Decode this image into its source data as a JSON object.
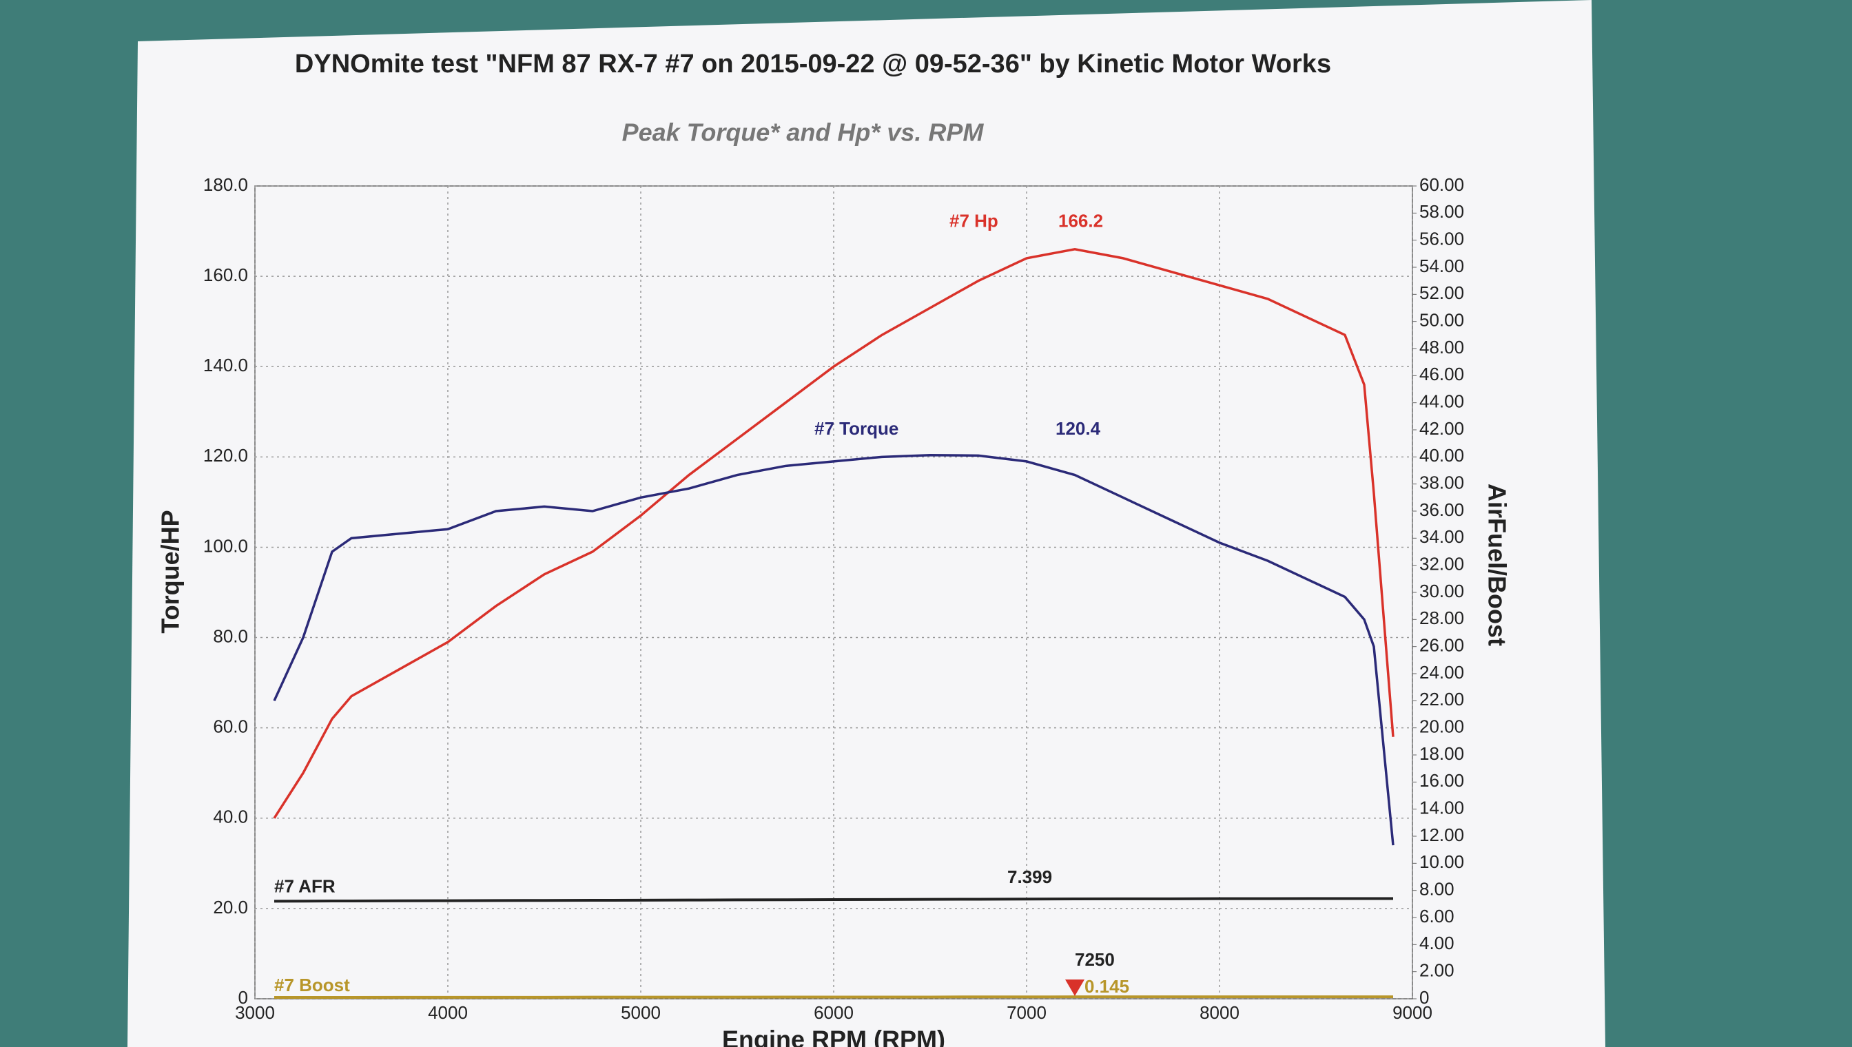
{
  "chart_data": {
    "type": "line",
    "title": "DYNOmite test \"NFM 87 RX-7 #7 on 2015-09-22 @ 09-52-36\" by Kinetic Motor Works",
    "subtitle": "Peak Torque* and Hp* vs. RPM",
    "x_label": "Engine RPM (RPM)",
    "y_label": "Torque/HP",
    "y2_label": "AirFuel/Boost",
    "xlim": [
      3000,
      9000
    ],
    "xticks": [
      3000,
      4000,
      5000,
      6000,
      7000,
      8000,
      9000
    ],
    "ylim": [
      0,
      180
    ],
    "yticks": [
      0,
      {
        "value": 20,
        "label": "20.0"
      },
      {
        "value": 40,
        "label": "40.0"
      },
      {
        "value": 60,
        "label": "60.0"
      },
      {
        "value": 80,
        "label": "80.0"
      },
      {
        "value": 100,
        "label": "100.0"
      },
      {
        "value": 120,
        "label": "120.0"
      },
      {
        "value": 140,
        "label": "140.0"
      },
      {
        "value": 160,
        "label": "160.0"
      },
      {
        "value": 180,
        "label": "180.0"
      }
    ],
    "y2lim": [
      0,
      60
    ],
    "y2ticks": [
      0,
      {
        "value": 2,
        "label": "2.00"
      },
      {
        "value": 4,
        "label": "4.00"
      },
      {
        "value": 6,
        "label": "6.00"
      },
      {
        "value": 8,
        "label": "8.00"
      },
      {
        "value": 10,
        "label": "10.00"
      },
      {
        "value": 12,
        "label": "12.00"
      },
      {
        "value": 14,
        "label": "14.00"
      },
      {
        "value": 16,
        "label": "16.00"
      },
      {
        "value": 18,
        "label": "18.00"
      },
      {
        "value": 20,
        "label": "20.00"
      },
      {
        "value": 22,
        "label": "22.00"
      },
      {
        "value": 24,
        "label": "24.00"
      },
      {
        "value": 26,
        "label": "26.00"
      },
      {
        "value": 28,
        "label": "28.00"
      },
      {
        "value": 30,
        "label": "30.00"
      },
      {
        "value": 32,
        "label": "32.00"
      },
      {
        "value": 34,
        "label": "34.00"
      },
      {
        "value": 36,
        "label": "36.00"
      },
      {
        "value": 38,
        "label": "38.00"
      },
      {
        "value": 40,
        "label": "40.00"
      },
      {
        "value": 42,
        "label": "42.00"
      },
      {
        "value": 44,
        "label": "44.00"
      },
      {
        "value": 46,
        "label": "46.00"
      },
      {
        "value": 48,
        "label": "48.00"
      },
      {
        "value": 50,
        "label": "50.00"
      },
      {
        "value": 52,
        "label": "52.00"
      },
      {
        "value": 54,
        "label": "54.00"
      },
      {
        "value": 56,
        "label": "56.00"
      },
      {
        "value": 58,
        "label": "58.00"
      },
      {
        "value": 60,
        "label": "60.00"
      }
    ],
    "grid": true,
    "x": [
      3100,
      3250,
      3400,
      3500,
      3750,
      4000,
      4250,
      4500,
      4750,
      5000,
      5250,
      5500,
      5750,
      6000,
      6250,
      6500,
      6750,
      7000,
      7250,
      7500,
      7750,
      8000,
      8250,
      8500,
      8650,
      8750,
      8800,
      8900
    ],
    "series": [
      {
        "name": "#7 Hp",
        "color": "#d9322a",
        "peak": 166.2,
        "values": [
          40,
          50,
          62,
          67,
          73,
          79,
          87,
          94,
          99,
          107,
          116,
          124,
          132,
          140,
          147,
          153,
          159,
          164,
          166,
          164,
          161,
          158,
          155,
          150,
          147,
          136,
          112,
          58
        ]
      },
      {
        "name": "#7 Torque",
        "color": "#2b2a78",
        "peak": 120.4,
        "values": [
          66,
          80,
          99,
          102,
          103,
          104,
          108,
          109,
          108,
          111,
          113,
          116,
          118,
          119,
          120,
          120.4,
          120.3,
          119,
          116,
          111,
          106,
          101,
          97,
          92,
          89,
          84,
          78,
          34
        ]
      },
      {
        "name": "#7 AFR",
        "color": "#222222",
        "axis": "y2",
        "peak": 7.399,
        "values": [
          7.2,
          7.21,
          7.22,
          7.22,
          7.23,
          7.24,
          7.25,
          7.26,
          7.27,
          7.28,
          7.29,
          7.3,
          7.31,
          7.32,
          7.33,
          7.34,
          7.35,
          7.36,
          7.37,
          7.38,
          7.38,
          7.39,
          7.39,
          7.399,
          7.399,
          7.399,
          7.399,
          7.399
        ]
      },
      {
        "name": "#7 Boost",
        "color": "#b8962a",
        "axis": "y2",
        "peak": 0.145,
        "values": [
          0.1,
          0.1,
          0.1,
          0.1,
          0.11,
          0.11,
          0.11,
          0.11,
          0.12,
          0.12,
          0.12,
          0.12,
          0.13,
          0.13,
          0.13,
          0.13,
          0.14,
          0.14,
          0.145,
          0.145,
          0.145,
          0.145,
          0.145,
          0.145,
          0.145,
          0.145,
          0.145,
          0.145
        ]
      }
    ],
    "cursor_x": 7250
  }
}
